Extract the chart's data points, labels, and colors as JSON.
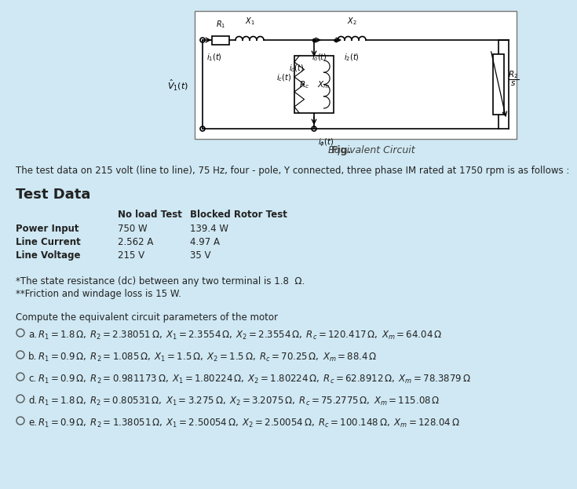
{
  "bg_color": "#cfe8f3",
  "circuit_box_color": "#ffffff",
  "fig_caption_bold": "Fig.",
  "fig_caption_italic": " Equivalent Circuit",
  "intro_text": "The test data on 215 volt (line to line), 75 Hz, four - pole, Y connected, three phase IM rated at 1750 rpm is as follows :",
  "test_data_header": "Test Data",
  "table_col0_label": [
    "Power Input",
    "Line Current",
    "Line Voltage"
  ],
  "table_col0_bold": [
    "Power Input",
    "Line Current",
    "Line Voltage"
  ],
  "table_col1_vals": [
    "750 W",
    "2.562 A",
    "215 V"
  ],
  "table_col2_vals": [
    "139.4 W",
    "4.97 A",
    "35 V"
  ],
  "table_header1": "No load Test",
  "table_header2": "Blocked Rotor Test",
  "note1": "*The state resistance (dc) between any two terminal is 1.8  Ω.",
  "note2": "**Friction and windage loss is 15 W.",
  "question": "Compute the equivalent circuit parameters of the motor",
  "choices_prefix": [
    "a.",
    "b.",
    "c.",
    "d.",
    "e."
  ],
  "choices_math": [
    "$R_1 = 1.8\\,\\Omega,\\; R_2 = 2.38051\\,\\Omega,\\; X_1 = 2.3554\\,\\Omega,\\; X_2 = 2.3554\\,\\Omega,\\; R_c = 120.417\\,\\Omega,\\; X_m = 64.04\\,\\Omega$",
    "$R_1 = 0.9\\,\\Omega,\\; R_2 = 1.085\\,\\Omega,\\; X_1 = 1.5\\,\\Omega,\\; X_2 = 1.5\\,\\Omega,\\; R_c = 70.25\\,\\Omega,\\; X_m = 88.4\\,\\Omega$",
    "$R_1 = 0.9\\,\\Omega,\\; R_2 = 0.981173\\,\\Omega,\\; X_1 = 1.80224\\,\\Omega,\\; X_2 = 1.80224\\,\\Omega,\\; R_c = 62.8912\\,\\Omega,\\; X_m = 78.3879\\,\\Omega$",
    "$R_1 = 1.8\\,\\Omega,\\; R_2 = 0.80531\\,\\Omega,\\; X_1 = 3.275\\,\\Omega,\\; X_2 = 3.2075\\,\\Omega,\\; R_c = 75.2775\\,\\Omega,\\; X_m = 115.08\\,\\Omega$",
    "$R_1 = 0.9\\,\\Omega,\\; R_2 = 1.38051\\,\\Omega,\\; X_1 = 2.50054\\,\\Omega,\\; X_2 = 2.50054\\,\\Omega,\\; R_c = 100.148\\,\\Omega,\\; X_m = 128.04\\,\\Omega$"
  ]
}
